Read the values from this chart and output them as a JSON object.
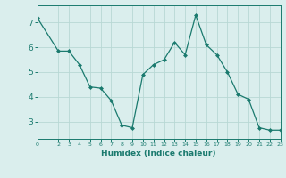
{
  "x": [
    0,
    2,
    3,
    4,
    5,
    6,
    7,
    8,
    9,
    10,
    11,
    12,
    13,
    14,
    15,
    16,
    17,
    18,
    19,
    20,
    21,
    22,
    23
  ],
  "y": [
    7.2,
    5.85,
    5.85,
    5.3,
    4.4,
    4.35,
    3.85,
    2.85,
    2.75,
    4.9,
    5.3,
    5.5,
    6.2,
    5.7,
    7.3,
    6.1,
    5.7,
    5.0,
    4.1,
    3.9,
    2.75,
    2.65,
    2.65
  ],
  "line_color": "#1a7a6e",
  "marker": "D",
  "marker_size": 2.0,
  "bg_color": "#daeeed",
  "grid_color": "#b8d8d4",
  "xlabel": "Humidex (Indice chaleur)",
  "xlim": [
    0,
    23
  ],
  "ylim": [
    2.3,
    7.7
  ],
  "yticks": [
    3,
    4,
    5,
    6,
    7
  ],
  "xticks": [
    0,
    2,
    3,
    4,
    5,
    6,
    7,
    8,
    9,
    10,
    11,
    12,
    13,
    14,
    15,
    16,
    17,
    18,
    19,
    20,
    21,
    22,
    23
  ],
  "tick_color": "#1a7a6e",
  "label_color": "#1a7a6e"
}
